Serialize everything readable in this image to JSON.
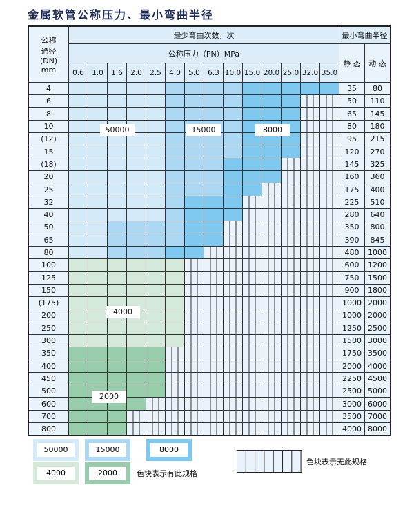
{
  "title": "金属软管公称压力、最小弯曲半径",
  "header": {
    "dn_label": [
      "公称",
      "通径",
      "(DN)",
      "mm"
    ],
    "cycles_label": "最少弯曲次数，次",
    "pressure_label": "公称压力（PN）MPa",
    "radius_label": "最小弯曲半径",
    "static_label": "静 态",
    "dynamic_label": "动 态",
    "pressures": [
      "0.6",
      "1.0",
      "1.6",
      "2.0",
      "2.5",
      "4.0",
      "5.0",
      "6.3",
      "10.0",
      "15.0",
      "20.0",
      "25.0",
      "32.0",
      "35.0"
    ]
  },
  "colors": {
    "50000": "#d5eaf8",
    "15000": "#acd8f3",
    "8000": "#7fc8ef",
    "4000": "#d4e9d9",
    "2000": "#98cdab",
    "none": "#eaf3fb"
  },
  "pattern_key": {
    "a": "50000",
    "b": "15000",
    "c": "8000",
    "d": "4000",
    "e": "2000",
    "x": "none"
  },
  "rows": [
    {
      "dn": "4",
      "cells": "aaaaabbbbccccc",
      "static": "35",
      "dynamic": "80"
    },
    {
      "dn": "6",
      "cells": "aaaaabbbbcccxx",
      "static": "50",
      "dynamic": "110"
    },
    {
      "dn": "8",
      "cells": "aaaaabbbbcccxx",
      "static": "65",
      "dynamic": "145"
    },
    {
      "dn": "10",
      "cells": "aaaaabbbbcccxx",
      "static": "80",
      "dynamic": "180"
    },
    {
      "dn": "(12)",
      "cells": "aaaaabbbbcccxx",
      "static": "95",
      "dynamic": "215"
    },
    {
      "dn": "15",
      "cells": "aaaaabbbbcccxx",
      "static": "120",
      "dynamic": "270"
    },
    {
      "dn": "(18)",
      "cells": "aaaaabbbcccxxx",
      "static": "145",
      "dynamic": "325"
    },
    {
      "dn": "20",
      "cells": "aaaaabbbcccxxx",
      "static": "160",
      "dynamic": "360"
    },
    {
      "dn": "25",
      "cells": "aaaaabbbccxxxx",
      "static": "175",
      "dynamic": "400"
    },
    {
      "dn": "32",
      "cells": "aaaaabcccxxxxx",
      "static": "225",
      "dynamic": "510"
    },
    {
      "dn": "40",
      "cells": "aaaaabcccxxxxx",
      "static": "280",
      "dynamic": "640"
    },
    {
      "dn": "50",
      "cells": "aabbbbccxxxxxx",
      "static": "350",
      "dynamic": "800"
    },
    {
      "dn": "65",
      "cells": "aabbbbccxxxxxx",
      "static": "390",
      "dynamic": "845"
    },
    {
      "dn": "80",
      "cells": "aabbbccxxxxxxx",
      "static": "480",
      "dynamic": "1000"
    },
    {
      "dn": "100",
      "cells": "ddddddxxxxxxxx",
      "static": "600",
      "dynamic": "1200"
    },
    {
      "dn": "125",
      "cells": "ddddddxxxxxxxx",
      "static": "750",
      "dynamic": "1500"
    },
    {
      "dn": "150",
      "cells": "ddddddxxxxxxxx",
      "static": "900",
      "dynamic": "1800"
    },
    {
      "dn": "(175)",
      "cells": "ddddddxxxxxxxx",
      "static": "1000",
      "dynamic": "2000"
    },
    {
      "dn": "200",
      "cells": "ddddddxxxxxxxx",
      "static": "1000",
      "dynamic": "2000"
    },
    {
      "dn": "250",
      "cells": "ddddddxxxxxxxx",
      "static": "1250",
      "dynamic": "2500"
    },
    {
      "dn": "300",
      "cells": "ddddddxxxxxxxx",
      "static": "1500",
      "dynamic": "3000"
    },
    {
      "dn": "350",
      "cells": "eeeeexxxxxxxxx",
      "static": "1750",
      "dynamic": "3500"
    },
    {
      "dn": "400",
      "cells": "eeeeexxxxxxxxx",
      "static": "2000",
      "dynamic": "4000"
    },
    {
      "dn": "450",
      "cells": "eeeeexxxxxxxxx",
      "static": "2250",
      "dynamic": "4500"
    },
    {
      "dn": "500",
      "cells": "eeeeexxxxxxxxx",
      "static": "2500",
      "dynamic": "5000"
    },
    {
      "dn": "600",
      "cells": "eeeexxxxxxxxxx",
      "static": "3000",
      "dynamic": "6000"
    },
    {
      "dn": "700",
      "cells": "eeexxxxxxxxxxx",
      "static": "3500",
      "dynamic": "7000"
    },
    {
      "dn": "800",
      "cells": "eeexxxxxxxxxxx",
      "static": "4000",
      "dynamic": "8000"
    }
  ],
  "region_labels": {
    "r50000": "50000",
    "r15000": "15000",
    "r8000": "8000",
    "r4000": "4000",
    "r2000": "2000"
  },
  "legend": {
    "items": [
      "50000",
      "15000",
      "8000",
      "4000",
      "2000"
    ],
    "has_spec_note": "色块表示有此规格",
    "no_spec_note": "色块表示无此规格"
  }
}
